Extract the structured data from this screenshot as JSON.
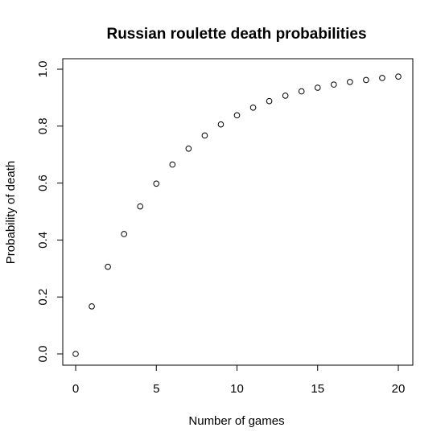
{
  "chart_data": {
    "type": "scatter",
    "title": "Russian roulette death probabilities",
    "xlabel": "Number of games",
    "ylabel": "Probability of death",
    "xlim": [
      0,
      20
    ],
    "ylim": [
      0,
      1
    ],
    "x_ticks": [
      "0",
      "5",
      "10",
      "15",
      "20"
    ],
    "y_ticks": [
      "0.0",
      "0.2",
      "0.4",
      "0.6",
      "0.8",
      "1.0"
    ],
    "grid": false,
    "legend": "none",
    "marker": "open-circle",
    "series": [
      {
        "x": [
          0,
          1,
          2,
          3,
          4,
          5,
          6,
          7,
          8,
          9,
          10,
          11,
          12,
          13,
          14,
          15,
          16,
          17,
          18,
          19,
          20
        ],
        "y": [
          0.0,
          0.167,
          0.306,
          0.421,
          0.518,
          0.598,
          0.665,
          0.721,
          0.767,
          0.806,
          0.838,
          0.865,
          0.888,
          0.907,
          0.922,
          0.935,
          0.946,
          0.955,
          0.962,
          0.969,
          0.974
        ]
      }
    ]
  }
}
